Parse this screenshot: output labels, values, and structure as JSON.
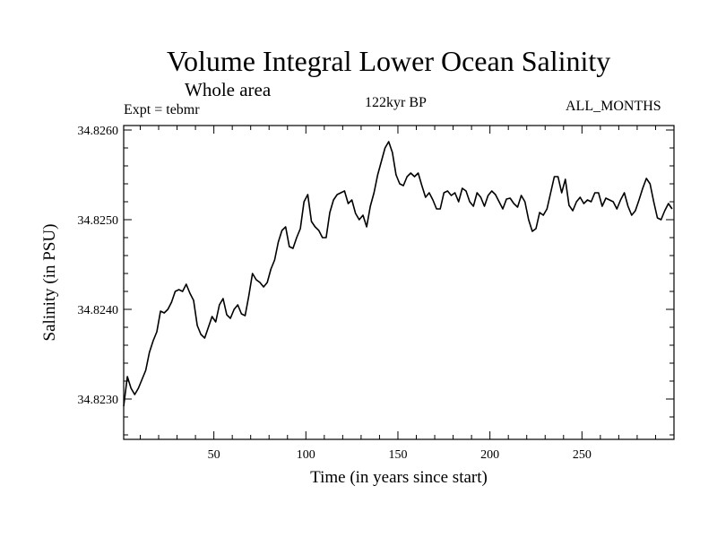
{
  "header": {
    "title": "Volume Integral Lower Ocean Salinity",
    "subtitle": "Whole area",
    "experiment": "Expt = tebmr",
    "period": "122kyr BP",
    "months": "ALL_MONTHS"
  },
  "chart_data": {
    "type": "line",
    "title": "Volume Integral Lower Ocean Salinity",
    "subtitle": "Whole area",
    "xlabel": "Time (in years since start)",
    "ylabel": "Salinity (in PSU)",
    "xlim": [
      1,
      300
    ],
    "ylim": [
      34.82255,
      34.82605
    ],
    "x_ticks": [
      50,
      100,
      150,
      200,
      250
    ],
    "y_ticks": [
      34.823,
      34.824,
      34.825,
      34.826
    ],
    "y_tick_labels": [
      "34.8230",
      "34.8240",
      "34.8250",
      "34.8260"
    ],
    "grid": false,
    "color": "#000000",
    "series": [
      {
        "name": "salinity",
        "x": [
          1,
          3,
          5,
          7,
          9,
          11,
          13,
          15,
          17,
          19,
          21,
          23,
          25,
          27,
          29,
          31,
          33,
          35,
          37,
          39,
          41,
          43,
          45,
          47,
          49,
          51,
          53,
          55,
          57,
          59,
          61,
          63,
          65,
          67,
          69,
          71,
          73,
          75,
          77,
          79,
          81,
          83,
          85,
          87,
          89,
          91,
          93,
          95,
          97,
          99,
          101,
          103,
          105,
          107,
          109,
          111,
          113,
          115,
          117,
          119,
          121,
          123,
          125,
          127,
          129,
          131,
          133,
          135,
          137,
          139,
          141,
          143,
          145,
          147,
          149,
          151,
          153,
          155,
          157,
          159,
          161,
          163,
          165,
          167,
          169,
          171,
          173,
          175,
          177,
          179,
          181,
          183,
          185,
          187,
          189,
          191,
          193,
          195,
          197,
          199,
          201,
          203,
          205,
          207,
          209,
          211,
          213,
          215,
          217,
          219,
          221,
          223,
          225,
          227,
          229,
          231,
          233,
          235,
          237,
          239,
          241,
          243,
          245,
          247,
          249,
          251,
          253,
          255,
          257,
          259,
          261,
          263,
          265,
          267,
          269,
          271,
          273,
          275,
          277,
          279,
          281,
          283,
          285,
          287,
          289,
          291,
          293,
          295,
          297,
          299
        ],
        "values": [
          34.82292,
          34.82325,
          34.82312,
          34.82305,
          34.82312,
          34.82322,
          34.82332,
          34.82352,
          34.82365,
          34.82375,
          34.82398,
          34.82396,
          34.824,
          34.82408,
          34.8242,
          34.82422,
          34.8242,
          34.82428,
          34.82418,
          34.8241,
          34.82382,
          34.82372,
          34.82368,
          34.8238,
          34.82392,
          34.82386,
          34.82405,
          34.82412,
          34.82394,
          34.8239,
          34.824,
          34.82405,
          34.82395,
          34.82393,
          34.82415,
          34.8244,
          34.82433,
          34.8243,
          34.82425,
          34.8243,
          34.82445,
          34.82455,
          34.82475,
          34.82488,
          34.82492,
          34.8247,
          34.82468,
          34.8248,
          34.8249,
          34.8252,
          34.82528,
          34.82498,
          34.82492,
          34.82488,
          34.8248,
          34.8248,
          34.82508,
          34.82522,
          34.82528,
          34.8253,
          34.82532,
          34.82518,
          34.82522,
          34.82507,
          34.825,
          34.82505,
          34.82492,
          34.82515,
          34.8253,
          34.8255,
          34.82565,
          34.8258,
          34.82587,
          34.82575,
          34.8255,
          34.8254,
          34.82538,
          34.82548,
          34.82552,
          34.82548,
          34.82552,
          34.82538,
          34.82525,
          34.8253,
          34.82522,
          34.82512,
          34.82512,
          34.8253,
          34.82532,
          34.82527,
          34.8253,
          34.8252,
          34.82535,
          34.82532,
          34.8252,
          34.82515,
          34.8253,
          34.82525,
          34.82515,
          34.82527,
          34.82532,
          34.82528,
          34.8252,
          34.82512,
          34.82523,
          34.82524,
          34.82518,
          34.82514,
          34.82527,
          34.8252,
          34.825,
          34.82487,
          34.8249,
          34.82508,
          34.82505,
          34.82512,
          34.8253,
          34.82548,
          34.82548,
          34.8253,
          34.82545,
          34.82516,
          34.8251,
          34.8252,
          34.82525,
          34.82518,
          34.82522,
          34.8252,
          34.8253,
          34.8253,
          34.82515,
          34.82524,
          34.82522,
          34.8252,
          34.82512,
          34.82522,
          34.8253,
          34.82515,
          34.82505,
          34.8251,
          34.82522,
          34.82535,
          34.82546,
          34.8254,
          34.8252,
          34.82502,
          34.825,
          34.8251,
          34.82518,
          34.82512
        ]
      }
    ]
  }
}
